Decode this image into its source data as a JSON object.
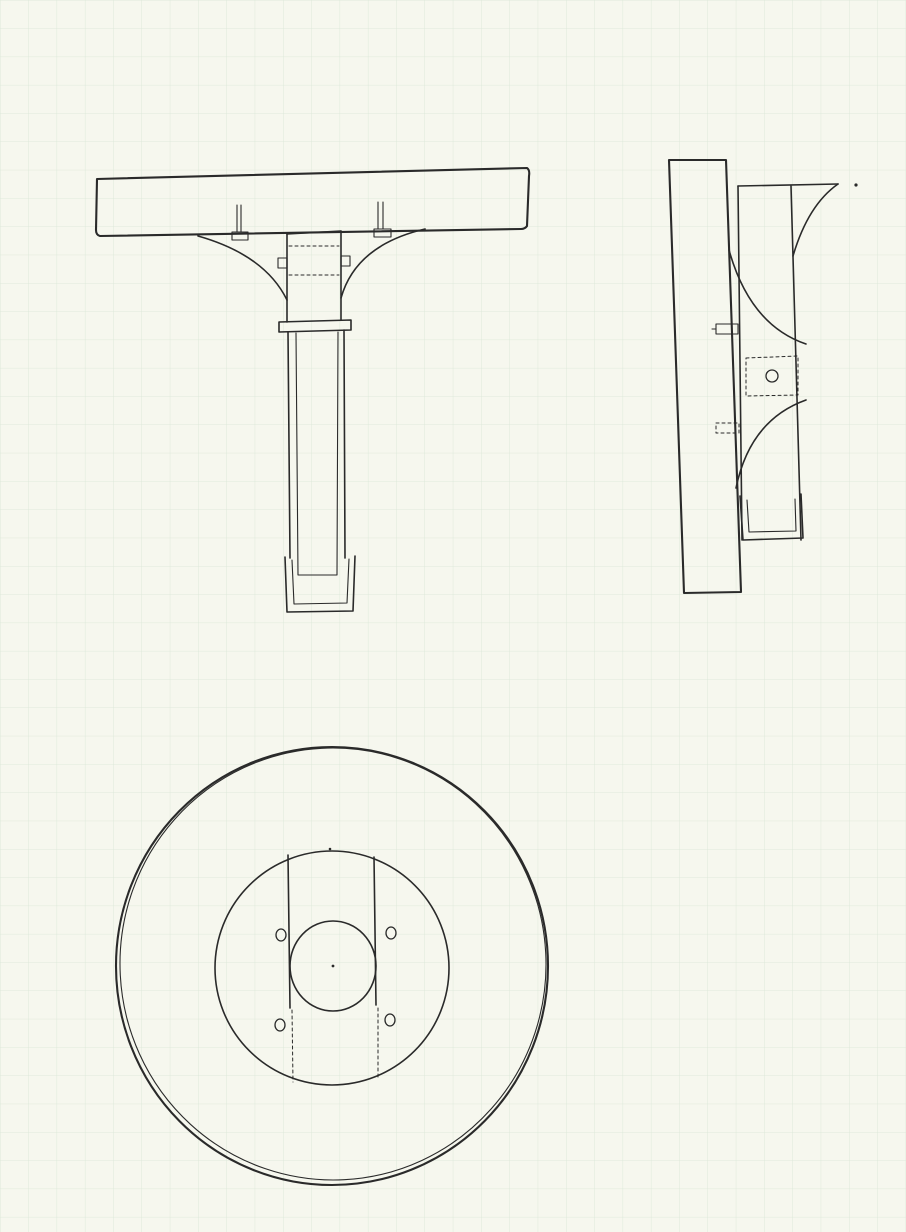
{
  "sheet": {
    "paper": "graph-paper",
    "paper_color": "#f6f7ee",
    "grid_color": "#cfe0cf",
    "ink_color": "#2a2a2a"
  },
  "views": [
    {
      "name": "front-view",
      "part": "seat-top-with-stem"
    },
    {
      "name": "side-view",
      "part": "post-with-bracket"
    },
    {
      "name": "top-view",
      "part": "round-seat-with-mount-plate"
    }
  ]
}
